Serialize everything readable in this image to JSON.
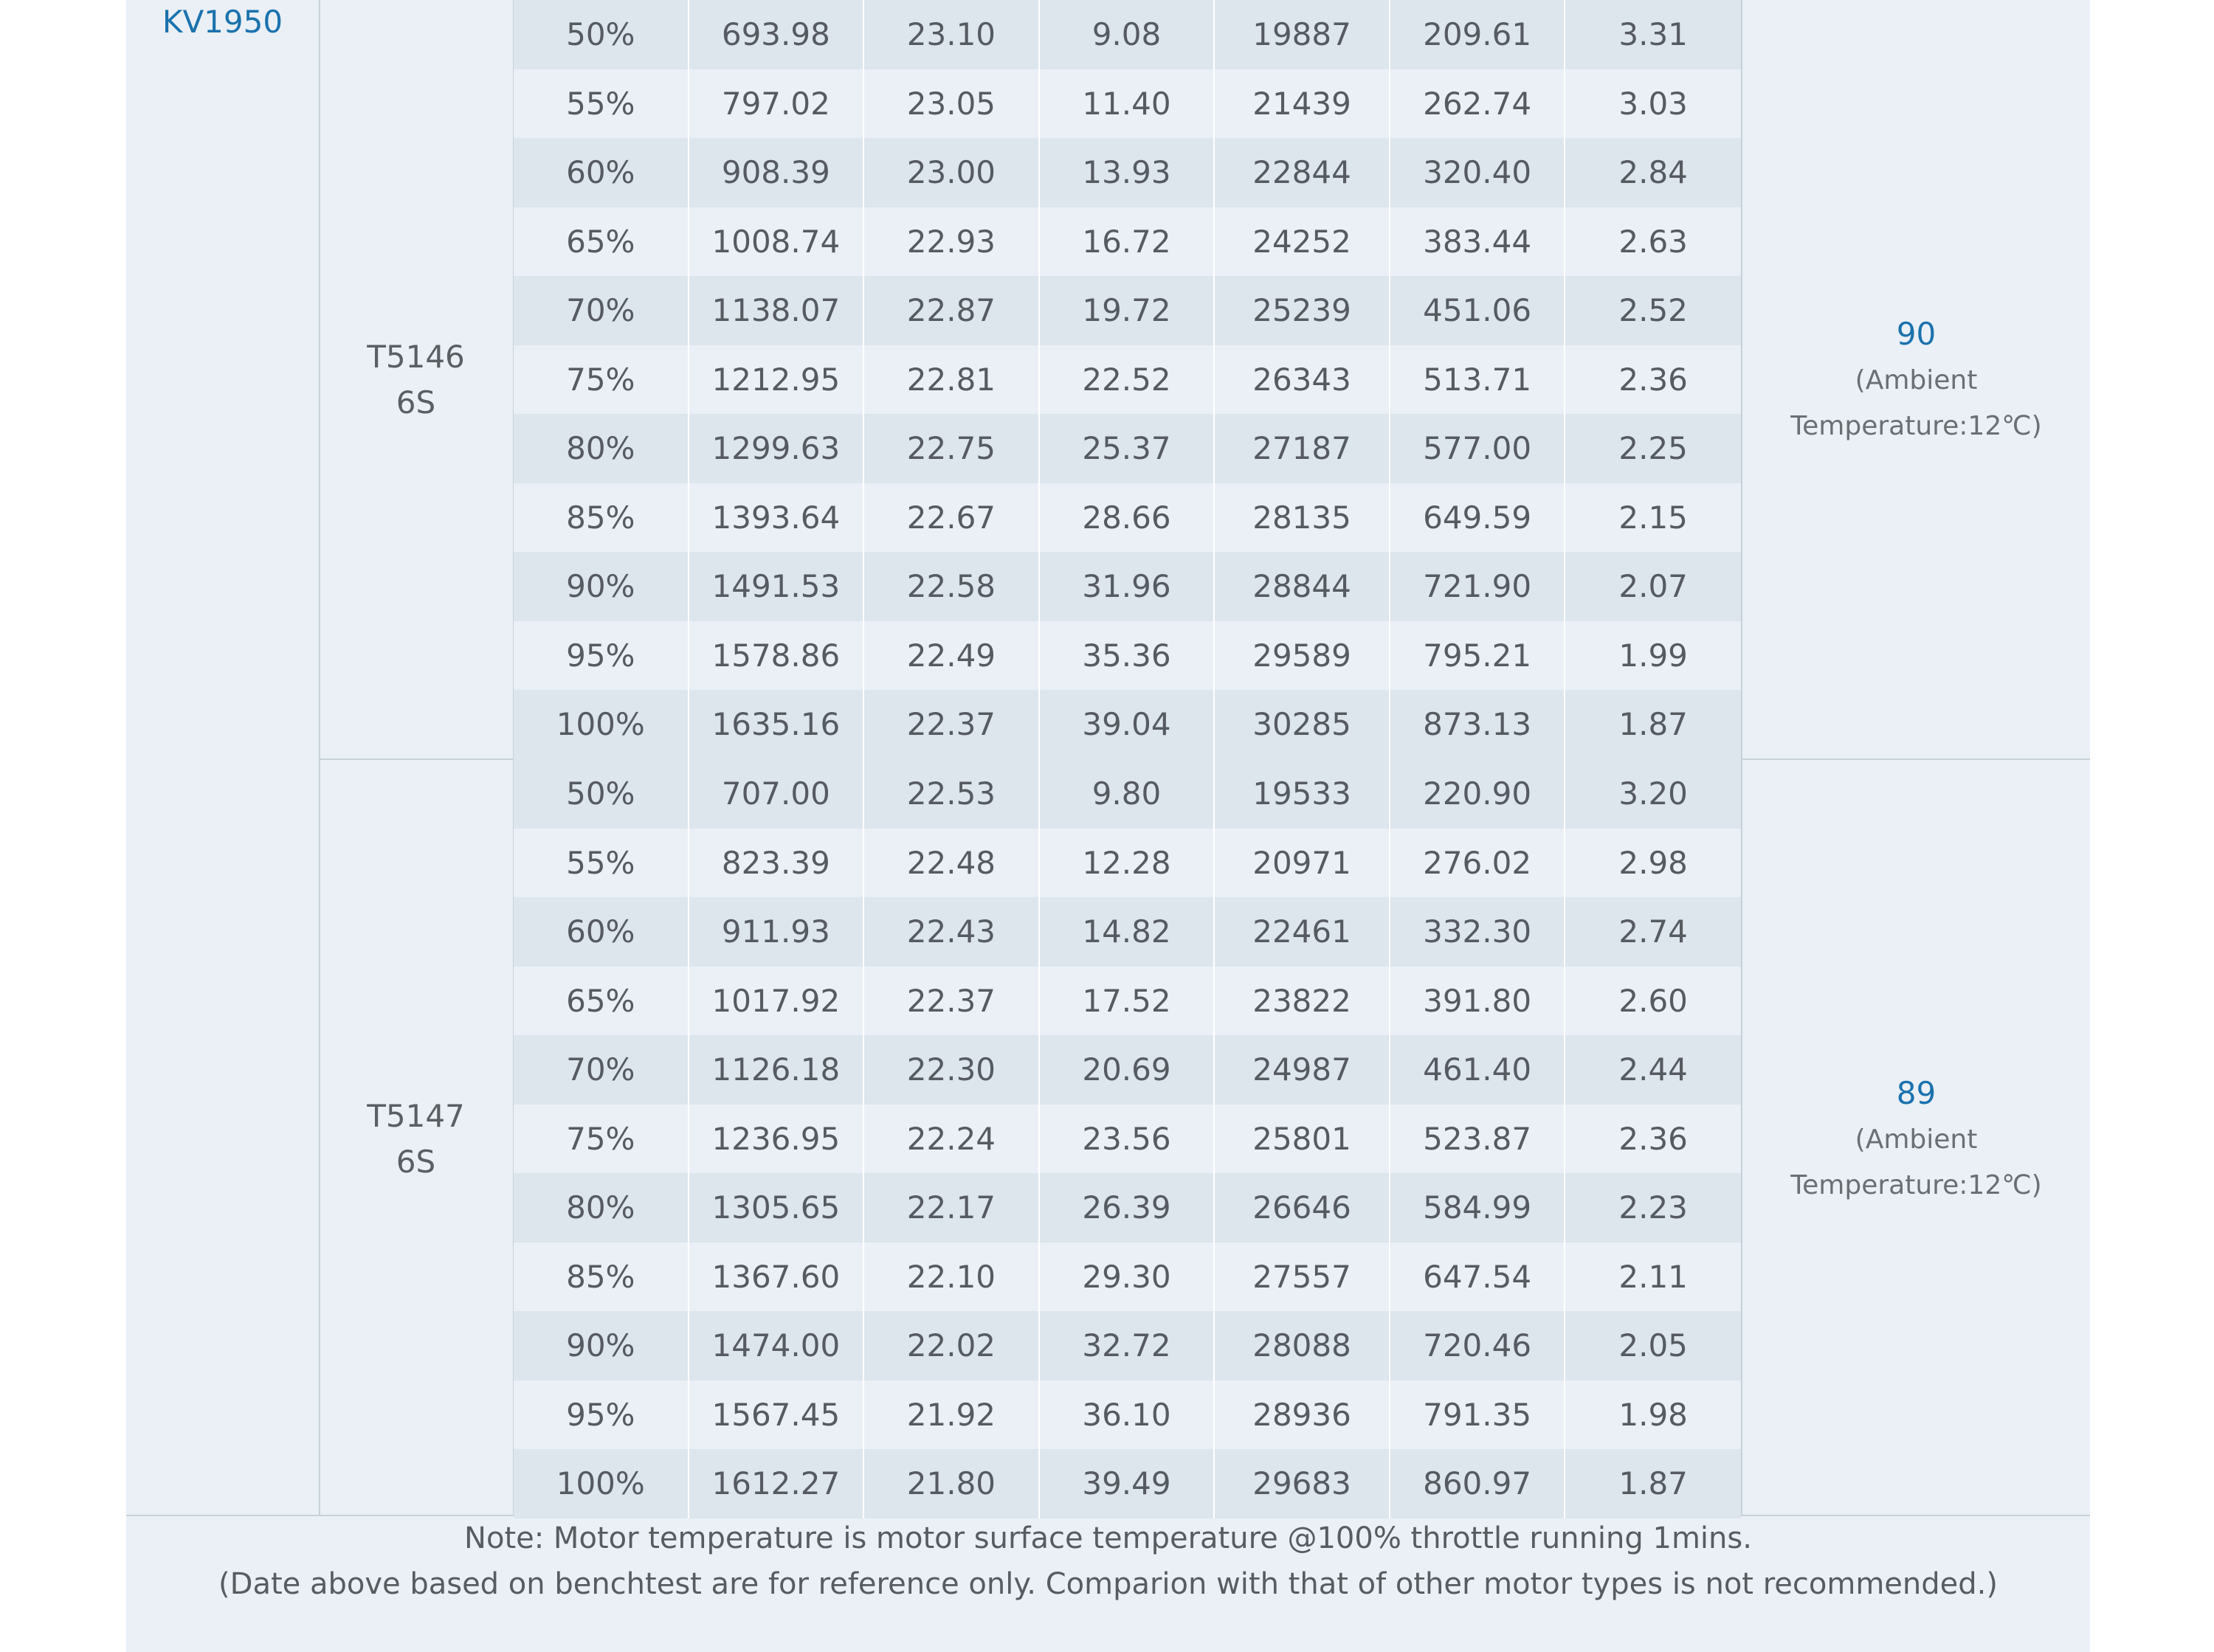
{
  "motor": "KV1950",
  "groups": [
    {
      "propeller": "T5146",
      "battery": "6S",
      "temperature": "90",
      "temperature_note_1": "(Ambient",
      "temperature_note_2": "Temperature:12℃)",
      "rows": [
        [
          "50%",
          "693.98",
          "23.10",
          "9.08",
          "19887",
          "209.61",
          "3.31"
        ],
        [
          "55%",
          "797.02",
          "23.05",
          "11.40",
          "21439",
          "262.74",
          "3.03"
        ],
        [
          "60%",
          "908.39",
          "23.00",
          "13.93",
          "22844",
          "320.40",
          "2.84"
        ],
        [
          "65%",
          "1008.74",
          "22.93",
          "16.72",
          "24252",
          "383.44",
          "2.63"
        ],
        [
          "70%",
          "1138.07",
          "22.87",
          "19.72",
          "25239",
          "451.06",
          "2.52"
        ],
        [
          "75%",
          "1212.95",
          "22.81",
          "22.52",
          "26343",
          "513.71",
          "2.36"
        ],
        [
          "80%",
          "1299.63",
          "22.75",
          "25.37",
          "27187",
          "577.00",
          "2.25"
        ],
        [
          "85%",
          "1393.64",
          "22.67",
          "28.66",
          "28135",
          "649.59",
          "2.15"
        ],
        [
          "90%",
          "1491.53",
          "22.58",
          "31.96",
          "28844",
          "721.90",
          "2.07"
        ],
        [
          "95%",
          "1578.86",
          "22.49",
          "35.36",
          "29589",
          "795.21",
          "1.99"
        ],
        [
          "100%",
          "1635.16",
          "22.37",
          "39.04",
          "30285",
          "873.13",
          "1.87"
        ]
      ]
    },
    {
      "propeller": "T5147",
      "battery": "6S",
      "temperature": "89",
      "temperature_note_1": "(Ambient",
      "temperature_note_2": "Temperature:12℃)",
      "rows": [
        [
          "50%",
          "707.00",
          "22.53",
          "9.80",
          "19533",
          "220.90",
          "3.20"
        ],
        [
          "55%",
          "823.39",
          "22.48",
          "12.28",
          "20971",
          "276.02",
          "2.98"
        ],
        [
          "60%",
          "911.93",
          "22.43",
          "14.82",
          "22461",
          "332.30",
          "2.74"
        ],
        [
          "65%",
          "1017.92",
          "22.37",
          "17.52",
          "23822",
          "391.80",
          "2.60"
        ],
        [
          "70%",
          "1126.18",
          "22.30",
          "20.69",
          "24987",
          "461.40",
          "2.44"
        ],
        [
          "75%",
          "1236.95",
          "22.24",
          "23.56",
          "25801",
          "523.87",
          "2.36"
        ],
        [
          "80%",
          "1305.65",
          "22.17",
          "26.39",
          "26646",
          "584.99",
          "2.23"
        ],
        [
          "85%",
          "1367.60",
          "22.10",
          "29.30",
          "27557",
          "647.54",
          "2.11"
        ],
        [
          "90%",
          "1474.00",
          "22.02",
          "32.72",
          "28088",
          "720.46",
          "2.05"
        ],
        [
          "95%",
          "1567.45",
          "21.92",
          "36.10",
          "28936",
          "791.35",
          "1.98"
        ],
        [
          "100%",
          "1612.27",
          "21.80",
          "39.49",
          "29683",
          "860.97",
          "1.87"
        ]
      ]
    }
  ],
  "note_line_1": "Note: Motor temperature is motor surface temperature @100% throttle running 1mins.",
  "note_line_2": "(Date above based on benchtest are for reference only. Comparion with that of other motor types is not recommended.)"
}
